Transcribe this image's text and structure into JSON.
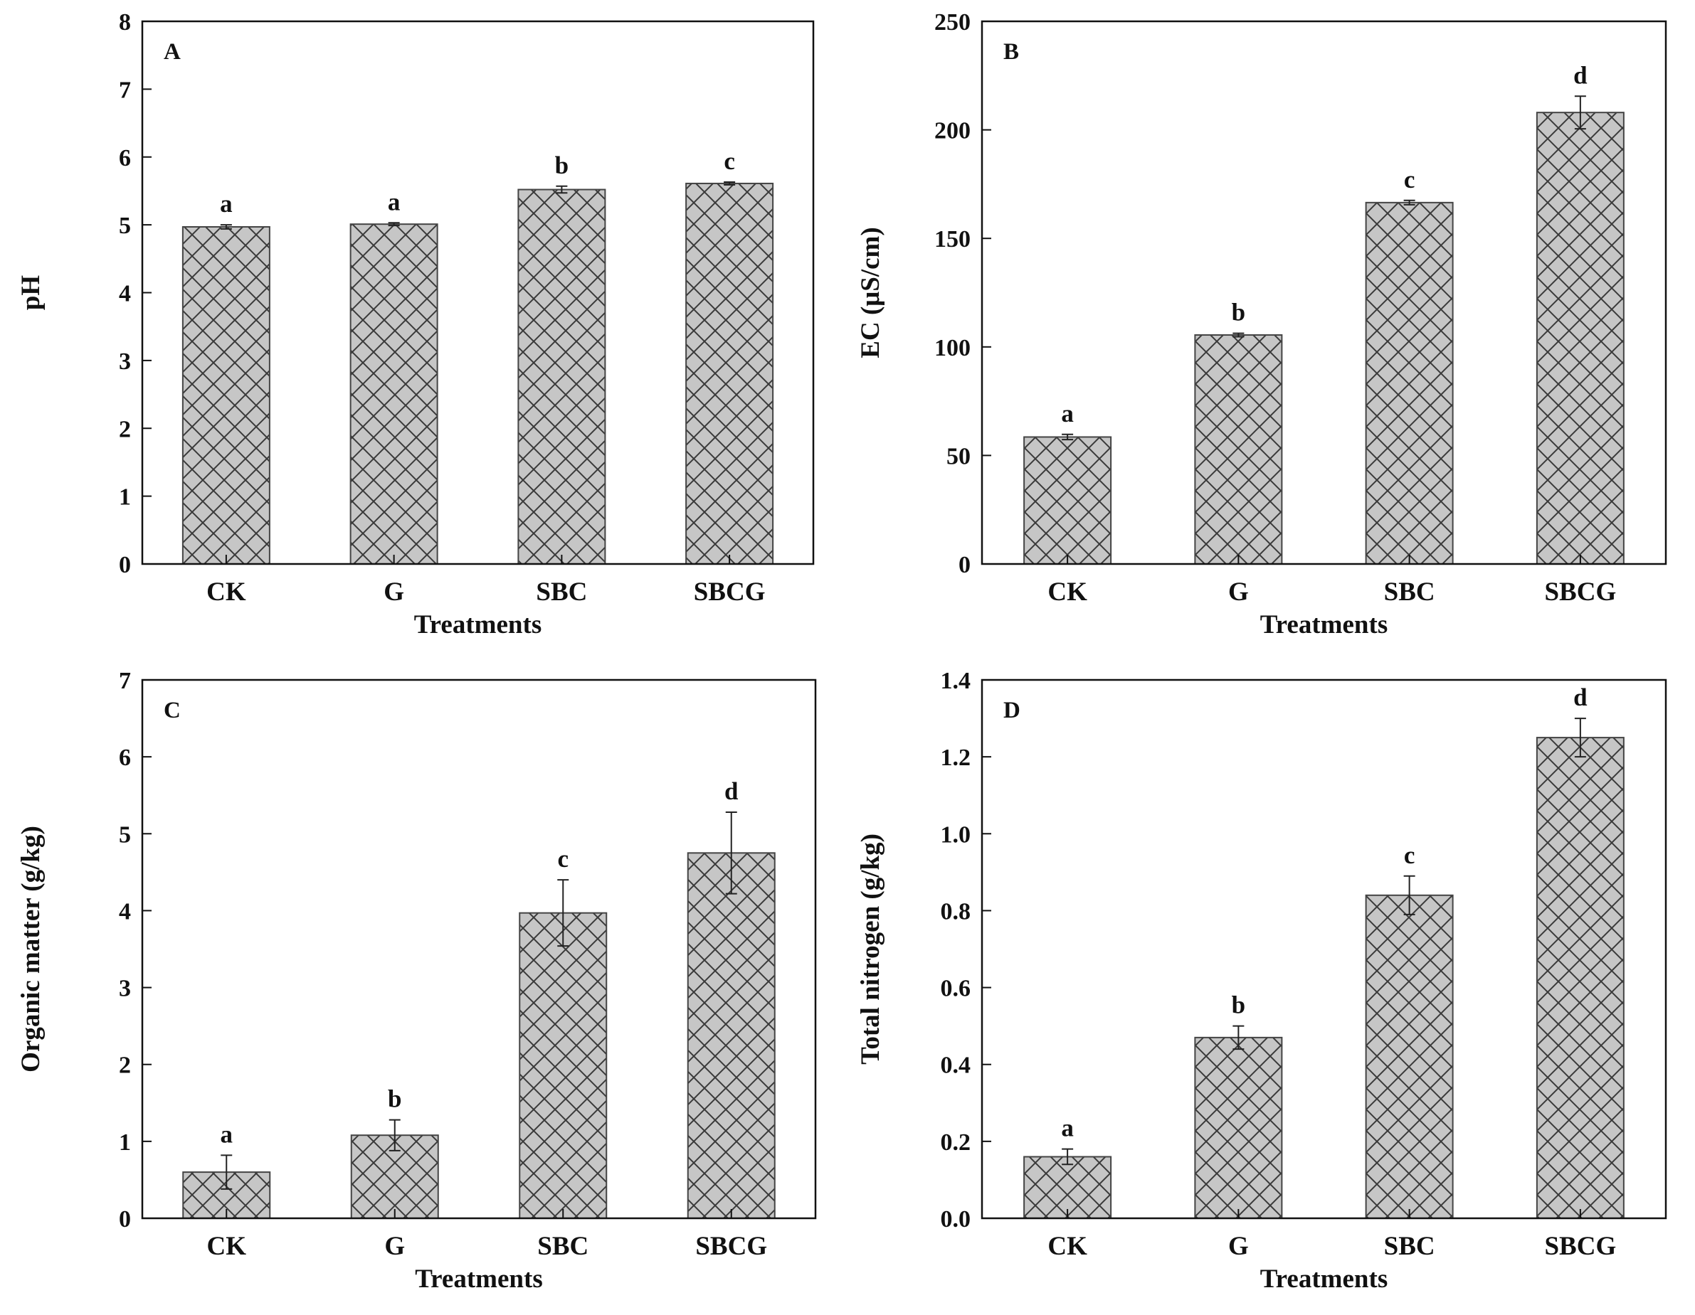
{
  "chart_data": [
    {
      "type": "bar",
      "panel": "A",
      "categories": [
        "CK",
        "G",
        "SBC",
        "SBCG"
      ],
      "values": [
        4.97,
        5.01,
        5.52,
        5.61
      ],
      "errors": [
        0.03,
        0.02,
        0.05,
        0.02
      ],
      "significance": [
        "a",
        "a",
        "b",
        "c"
      ],
      "xlabel": "Treatments",
      "ylabel": "pH",
      "ylim": [
        0,
        8
      ],
      "yticks": [
        0,
        1,
        2,
        3,
        4,
        5,
        6,
        7,
        8
      ],
      "ytick_labels": [
        "0",
        "1",
        "2",
        "3",
        "4",
        "5",
        "6",
        "7",
        "8"
      ],
      "grid": false
    },
    {
      "type": "bar",
      "panel": "B",
      "categories": [
        "CK",
        "G",
        "SBC",
        "SBCG"
      ],
      "values": [
        58.5,
        105.5,
        166.5,
        208
      ],
      "errors": [
        1.2,
        0.8,
        1.0,
        7.5
      ],
      "significance": [
        "a",
        "b",
        "c",
        "d"
      ],
      "xlabel": "Treatments",
      "ylabel": "EC (μS/cm)",
      "ylim": [
        0,
        250
      ],
      "yticks": [
        0,
        50,
        100,
        150,
        200,
        250
      ],
      "ytick_labels": [
        "0",
        "50",
        "100",
        "150",
        "200",
        "250"
      ],
      "grid": false
    },
    {
      "type": "bar",
      "panel": "C",
      "categories": [
        "CK",
        "G",
        "SBC",
        "SBCG"
      ],
      "values": [
        0.6,
        1.08,
        3.97,
        4.75
      ],
      "errors": [
        0.22,
        0.2,
        0.43,
        0.53
      ],
      "significance": [
        "a",
        "b",
        "c",
        "d"
      ],
      "xlabel": "Treatments",
      "ylabel": "Organic matter (g/kg)",
      "ylim": [
        0,
        7
      ],
      "yticks": [
        0,
        1,
        2,
        3,
        4,
        5,
        6,
        7
      ],
      "ytick_labels": [
        "0",
        "1",
        "2",
        "3",
        "4",
        "5",
        "6",
        "7"
      ],
      "grid": false
    },
    {
      "type": "bar",
      "panel": "D",
      "categories": [
        "CK",
        "G",
        "SBC",
        "SBCG"
      ],
      "values": [
        0.16,
        0.47,
        0.84,
        1.25
      ],
      "errors": [
        0.02,
        0.03,
        0.05,
        0.05
      ],
      "significance": [
        "a",
        "b",
        "c",
        "d"
      ],
      "xlabel": "Treatments",
      "ylabel": "Total nitrogen (g/kg)",
      "ylim": [
        0,
        1.4
      ],
      "yticks": [
        0,
        0.2,
        0.4,
        0.6,
        0.8,
        1.0,
        1.2,
        1.4
      ],
      "ytick_labels": [
        "0.0",
        "0.2",
        "0.4",
        "0.6",
        "0.8",
        "1.0",
        "1.2",
        "1.4"
      ],
      "grid": false
    }
  ],
  "colors": {
    "bar_fill": "#c6c6c6",
    "hatch": "#3a3a3a",
    "axis": "#111111"
  }
}
